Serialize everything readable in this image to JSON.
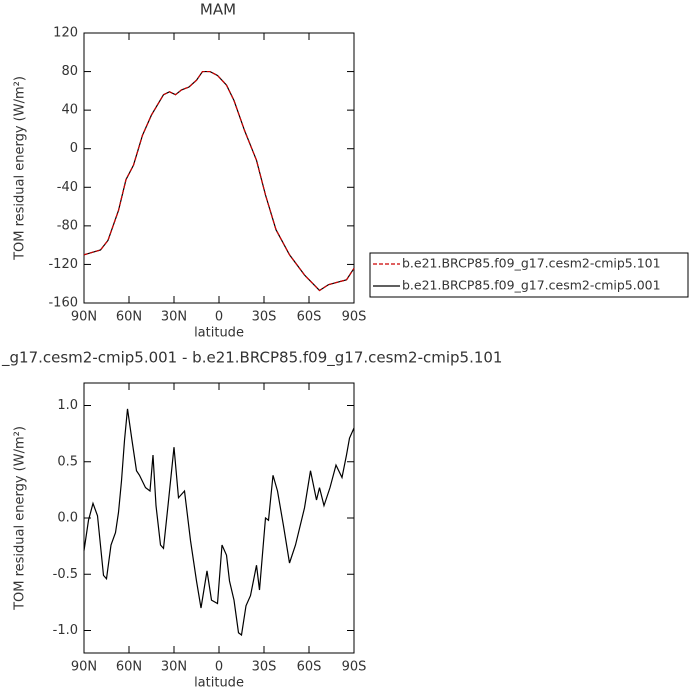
{
  "chart_data": [
    {
      "type": "line",
      "title": "MAM",
      "xlabel": "latitude",
      "ylabel": "TOM residual energy (W/m²)",
      "x": [
        90,
        79,
        74,
        67,
        62,
        57,
        51,
        45,
        37,
        33,
        29,
        25,
        20,
        15,
        11,
        6,
        1,
        -5,
        -10,
        -17,
        -25,
        -31,
        -38,
        -47,
        -57,
        -67,
        -73,
        -80,
        -85,
        -90
      ],
      "series": [
        {
          "name": "b.e21.BRCP85.f09_g17.cesm2-cmip5.101",
          "color": "#cc0000",
          "style": "dashed",
          "values": [
            -110,
            -105,
            -95,
            -64,
            -32,
            -17,
            14,
            35,
            56,
            59,
            56,
            61,
            64,
            71,
            80,
            80,
            76,
            66,
            50,
            19,
            -12,
            -48,
            -84,
            -110,
            -131,
            -147,
            -141,
            -138,
            -136,
            -124
          ]
        },
        {
          "name": "b.e21.BRCP85.f09_g17.cesm2-cmip5.001",
          "color": "#000000",
          "style": "solid",
          "values": [
            -110,
            -105,
            -95,
            -64,
            -32,
            -17,
            14,
            35,
            56,
            59,
            56,
            61,
            64,
            71,
            80,
            80,
            76,
            66,
            50,
            19,
            -12,
            -48,
            -84,
            -110,
            -131,
            -147,
            -141,
            -138,
            -136,
            -124
          ]
        }
      ],
      "xlim": [
        90,
        -90
      ],
      "xticks": [
        {
          "value": 90,
          "label": "90N"
        },
        {
          "value": 60,
          "label": "60N"
        },
        {
          "value": 30,
          "label": "30N"
        },
        0,
        {
          "value": -30,
          "label": "30S"
        },
        {
          "value": -60,
          "label": "60S"
        },
        {
          "value": -90,
          "label": "90S"
        }
      ],
      "ylim": [
        -160,
        120
      ],
      "yticks": [
        -160,
        -120,
        -80,
        -40,
        0,
        40,
        80,
        120
      ],
      "legend": "outside-right"
    },
    {
      "type": "line",
      "title": "_g17.cesm2-cmip5.001 - b.e21.BRCP85.f09_g17.cesm2-cmip5.101",
      "xlabel": "latitude",
      "ylabel": "TOM residual energy (W/m²)",
      "x": [
        90,
        87,
        84,
        81,
        77,
        75,
        72,
        69,
        67,
        65,
        63,
        61,
        58,
        55,
        53,
        49,
        46,
        44,
        42,
        39,
        37,
        34,
        30,
        27,
        23,
        19,
        15,
        12,
        8,
        5,
        1,
        -2,
        -5,
        -7,
        -10,
        -13,
        -15,
        -18,
        -21,
        -25,
        -27,
        -31,
        -33,
        -36,
        -39,
        -43,
        -47,
        -51,
        -57,
        -61,
        -65,
        -67,
        -70,
        -74,
        -78,
        -82,
        -85,
        -87,
        -90
      ],
      "series": [
        {
          "color": "#000000",
          "style": "solid",
          "values": [
            -0.29,
            -0.02,
            0.13,
            0.02,
            -0.51,
            -0.54,
            -0.24,
            -0.13,
            0.05,
            0.33,
            0.69,
            0.97,
            0.69,
            0.42,
            0.38,
            0.27,
            0.24,
            0.56,
            0.11,
            -0.24,
            -0.27,
            0.11,
            0.63,
            0.18,
            0.24,
            -0.2,
            -0.56,
            -0.8,
            -0.47,
            -0.73,
            -0.76,
            -0.24,
            -0.33,
            -0.56,
            -0.73,
            -1.02,
            -1.04,
            -0.78,
            -0.69,
            -0.42,
            -0.64,
            0,
            -0.02,
            0.38,
            0.24,
            -0.07,
            -0.4,
            -0.24,
            0.09,
            0.42,
            0.16,
            0.27,
            0.11,
            0.27,
            0.47,
            0.36,
            0.56,
            0.71,
            0.8
          ]
        }
      ],
      "xlim": [
        90,
        -90
      ],
      "xticks": [
        {
          "value": 90,
          "label": "90N"
        },
        {
          "value": 60,
          "label": "60N"
        },
        {
          "value": 30,
          "label": "30N"
        },
        0,
        {
          "value": -30,
          "label": "30S"
        },
        {
          "value": -60,
          "label": "60S"
        },
        {
          "value": -90,
          "label": "90S"
        }
      ],
      "ylim": [
        -1.2,
        1.2
      ],
      "yticks": [
        {
          "value": -1,
          "label": "-1.0"
        },
        -0.5,
        {
          "value": 0,
          "label": "0.0"
        },
        0.5,
        {
          "value": 1,
          "label": "1.0"
        }
      ]
    }
  ]
}
